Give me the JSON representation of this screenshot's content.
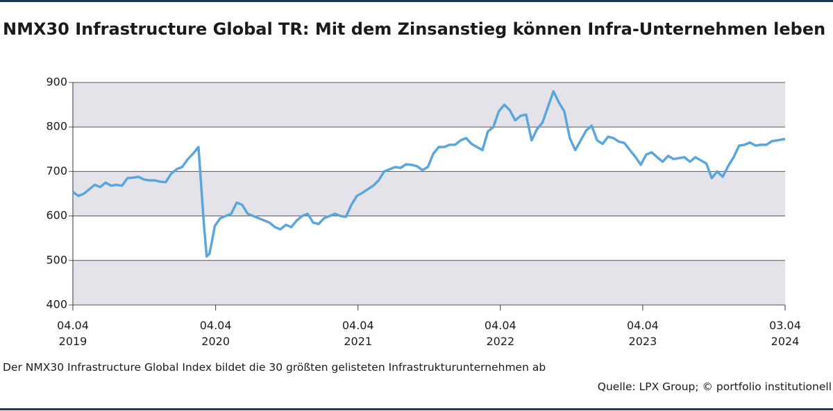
{
  "chart_data": {
    "type": "line",
    "title": "NMX30 Infrastructure Global TR: Mit dem Zinsanstieg können Infra-Unternehmen leben",
    "note": "Der NMX30 Infrastructure Global Index bildet die 30 größten gelisteten Infrastrukturunternehmen ab",
    "source": "Quelle: LPX Group; © portfolio institutionell",
    "x": [
      "2019-04-04",
      "2019-04-18",
      "2019-05-02",
      "2019-05-16",
      "2019-05-30",
      "2019-06-13",
      "2019-06-27",
      "2019-07-11",
      "2019-07-25",
      "2019-08-08",
      "2019-08-22",
      "2019-09-05",
      "2019-09-19",
      "2019-10-03",
      "2019-10-17",
      "2019-10-31",
      "2019-11-14",
      "2019-11-28",
      "2019-12-12",
      "2019-12-26",
      "2020-01-09",
      "2020-01-23",
      "2020-02-06",
      "2020-02-20",
      "2020-03-05",
      "2020-03-12",
      "2020-03-19",
      "2020-03-26",
      "2020-04-02",
      "2020-04-16",
      "2020-04-30",
      "2020-05-14",
      "2020-05-28",
      "2020-06-11",
      "2020-06-25",
      "2020-07-09",
      "2020-07-23",
      "2020-08-06",
      "2020-08-20",
      "2020-09-03",
      "2020-09-17",
      "2020-10-01",
      "2020-10-15",
      "2020-10-29",
      "2020-11-12",
      "2020-11-26",
      "2020-12-10",
      "2020-12-24",
      "2021-01-07",
      "2021-01-21",
      "2021-02-04",
      "2021-02-18",
      "2021-03-04",
      "2021-03-18",
      "2021-04-01",
      "2021-04-15",
      "2021-04-29",
      "2021-05-13",
      "2021-05-27",
      "2021-06-10",
      "2021-06-24",
      "2021-07-08",
      "2021-07-22",
      "2021-08-05",
      "2021-08-19",
      "2021-09-02",
      "2021-09-16",
      "2021-09-30",
      "2021-10-14",
      "2021-10-28",
      "2021-11-11",
      "2021-11-25",
      "2021-12-09",
      "2021-12-23",
      "2022-01-06",
      "2022-01-20",
      "2022-02-03",
      "2022-02-17",
      "2022-03-03",
      "2022-03-17",
      "2022-03-31",
      "2022-04-14",
      "2022-04-28",
      "2022-05-12",
      "2022-05-26",
      "2022-06-09",
      "2022-06-23",
      "2022-07-07",
      "2022-07-21",
      "2022-08-04",
      "2022-08-18",
      "2022-09-01",
      "2022-09-15",
      "2022-09-29",
      "2022-10-13",
      "2022-10-27",
      "2022-11-10",
      "2022-11-24",
      "2022-12-08",
      "2022-12-22",
      "2023-01-05",
      "2023-01-19",
      "2023-02-02",
      "2023-02-16",
      "2023-03-02",
      "2023-03-16",
      "2023-03-30",
      "2023-04-13",
      "2023-04-27",
      "2023-05-11",
      "2023-05-25",
      "2023-06-08",
      "2023-06-22",
      "2023-07-06",
      "2023-07-20",
      "2023-08-03",
      "2023-08-17",
      "2023-08-31",
      "2023-09-14",
      "2023-09-28",
      "2023-10-12",
      "2023-10-26",
      "2023-11-09",
      "2023-11-23",
      "2023-12-07",
      "2023-12-21",
      "2024-01-04",
      "2024-01-18",
      "2024-02-01",
      "2024-02-15",
      "2024-02-29",
      "2024-03-14",
      "2024-04-03"
    ],
    "series": [
      {
        "name": "NMX30 Infrastructure Global TR",
        "color": "#5aa6dc",
        "values": [
          654,
          645,
          650,
          660,
          670,
          665,
          675,
          668,
          670,
          668,
          685,
          686,
          688,
          682,
          680,
          680,
          677,
          676,
          695,
          705,
          710,
          727,
          740,
          755,
          580,
          509,
          515,
          545,
          578,
          595,
          600,
          605,
          630,
          625,
          605,
          600,
          595,
          590,
          585,
          575,
          570,
          580,
          575,
          590,
          600,
          605,
          585,
          582,
          595,
          600,
          605,
          600,
          598,
          625,
          645,
          652,
          660,
          668,
          680,
          700,
          705,
          710,
          708,
          716,
          715,
          712,
          703,
          710,
          740,
          755,
          755,
          760,
          760,
          770,
          775,
          762,
          755,
          748,
          790,
          800,
          835,
          850,
          838,
          815,
          825,
          828,
          770,
          795,
          810,
          845,
          880,
          855,
          835,
          775,
          748,
          770,
          792,
          803,
          770,
          762,
          778,
          775,
          767,
          764,
          748,
          733,
          715,
          738,
          743,
          732,
          722,
          735,
          728,
          730,
          732,
          722,
          732,
          725,
          718,
          685,
          700,
          688,
          712,
          732,
          758,
          760,
          765,
          758,
          760,
          760,
          768,
          770,
          773
        ]
      }
    ],
    "xlim": [
      "2019-04-04",
      "2024-04-03"
    ],
    "xticks": [
      {
        "value": "2019-04-04",
        "label": "04.04\n2019"
      },
      {
        "value": "2020-04-04",
        "label": "04.04\n2020"
      },
      {
        "value": "2021-04-04",
        "label": "04.04\n2021"
      },
      {
        "value": "2022-04-04",
        "label": "04.04\n2022"
      },
      {
        "value": "2023-04-04",
        "label": "04.04\n2023"
      },
      {
        "value": "2024-04-03",
        "label": "03.04\n2024"
      }
    ],
    "ylim": [
      400,
      900
    ],
    "yticks": [
      400,
      500,
      600,
      700,
      800,
      900
    ],
    "grid": true
  }
}
